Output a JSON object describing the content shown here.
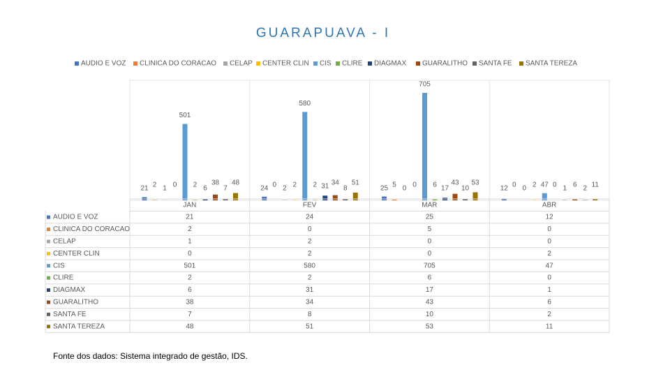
{
  "chart_data": {
    "type": "bar",
    "title": "GUARAPUAVA - I",
    "categories": [
      "JAN",
      "FEV",
      "MAR",
      "ABR"
    ],
    "series": [
      {
        "name": "AUDIO E VOZ",
        "color": "#4472c4",
        "values": [
          21,
          24,
          25,
          12
        ]
      },
      {
        "name": "CLINICA DO CORACAO",
        "color": "#ed7d31",
        "values": [
          2,
          0,
          5,
          0
        ]
      },
      {
        "name": "CELAP",
        "color": "#a5a5a5",
        "values": [
          1,
          2,
          0,
          0
        ]
      },
      {
        "name": "CENTER CLIN",
        "color": "#ffc000",
        "values": [
          0,
          2,
          0,
          2
        ]
      },
      {
        "name": "CIS",
        "color": "#5b9bd5",
        "values": [
          501,
          580,
          705,
          47
        ]
      },
      {
        "name": "CLIRE",
        "color": "#70ad47",
        "values": [
          2,
          2,
          6,
          0
        ]
      },
      {
        "name": "DIAGMAX",
        "color": "#264478",
        "values": [
          6,
          31,
          17,
          1
        ]
      },
      {
        "name": "GUARALITHO",
        "color": "#9e480e",
        "values": [
          38,
          34,
          43,
          6
        ]
      },
      {
        "name": "SANTA FE",
        "color": "#636363",
        "values": [
          7,
          8,
          10,
          2
        ]
      },
      {
        "name": "SANTA TEREZA",
        "color": "#997300",
        "values": [
          48,
          51,
          53,
          11
        ]
      }
    ],
    "source": "Fonte dos dados: Sistema integrado de gestão, IDS."
  }
}
